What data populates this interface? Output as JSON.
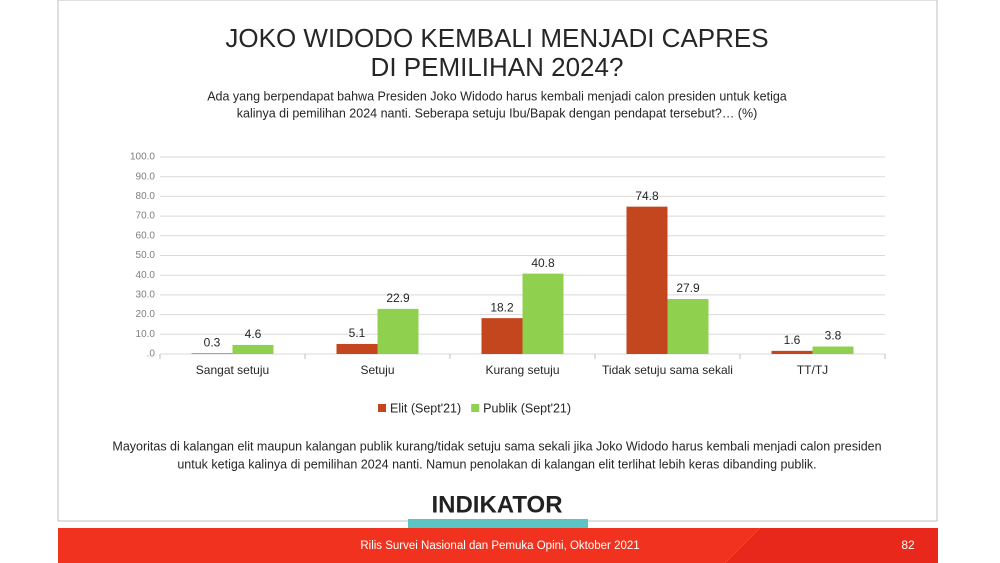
{
  "chart_data": {
    "type": "bar",
    "title": "JOKO WIDODO KEMBALI MENJADI CAPRES DI PEMILIHAN 2024?",
    "subtitle": [
      "Ada yang berpendapat bahwa Presiden Joko Widodo harus kembali menjadi calon presiden untuk ketiga",
      "kalinya di pemilihan 2024 nanti. Seberapa setuju Ibu/Bapak dengan pendapat tersebut?… (%)"
    ],
    "categories": [
      "Sangat setuju",
      "Setuju",
      "Kurang setuju",
      "Tidak setuju sama sekali",
      "TT/TJ"
    ],
    "series": [
      {
        "name": "Elit (Sept'21)",
        "color": "#c4461f",
        "values": [
          0.3,
          5.1,
          18.2,
          74.8,
          1.6
        ]
      },
      {
        "name": "Publik (Sept'21)",
        "color": "#8fd14f",
        "values": [
          4.6,
          22.9,
          40.8,
          27.9,
          3.8
        ]
      }
    ],
    "ylim": [
      0,
      100
    ],
    "yticks": [
      {
        "value": 0,
        "label": ".0"
      },
      {
        "value": 10,
        "label": "10.0"
      },
      {
        "value": 20,
        "label": "20.0"
      },
      {
        "value": 30,
        "label": "30.0"
      },
      {
        "value": 40,
        "label": "40.0"
      },
      {
        "value": 50,
        "label": "50.0"
      },
      {
        "value": 60,
        "label": "60.0"
      },
      {
        "value": 70,
        "label": "70.0"
      },
      {
        "value": 80,
        "label": "80.0"
      },
      {
        "value": 90,
        "label": "90.0"
      },
      {
        "value": 100,
        "label": "100.0"
      }
    ],
    "grid": true,
    "legend": "bottom"
  },
  "note": [
    "Mayoritas di kalangan elit maupun kalangan publik kurang/tidak setuju sama sekali jika Joko Widodo harus kembali menjadi calon presiden",
    "untuk ketiga kalinya di pemilihan 2024 nanti. Namun penolakan di kalangan elit terlihat lebih keras dibanding publik."
  ],
  "logo": "INDIKATOR",
  "footer": "Rilis Survei Nasional dan Pemuka Opini, Oktober 2021",
  "page_number": "82"
}
